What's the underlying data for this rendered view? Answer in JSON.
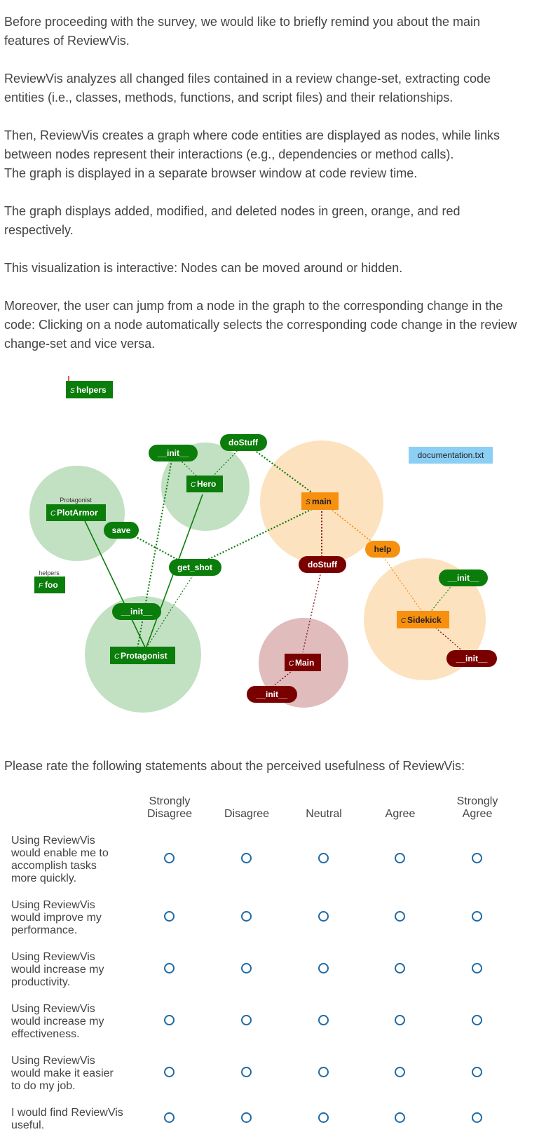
{
  "intro": {
    "p1": "Before proceeding with the survey, we would like to briefly remind you about the main features of ReviewVis.",
    "p2": "ReviewVis analyzes all changed files contained in a review change-set, extracting code entities (i.e., classes, methods, functions, and script files) and their relationships.",
    "p3a": "Then, ReviewVis creates a graph where code entities are displayed as nodes, while links between nodes represent their interactions (e.g., dependencies or method calls).",
    "p3b": "The graph is displayed in a separate browser window at code review time.",
    "p4": "The graph displays added, modified, and deleted nodes in green, orange, and red respectively.",
    "p5": "This visualization is interactive: Nodes can be moved around or hidden.",
    "p6": "Moreover, the user can jump from a node in the graph to the corresponding change in the code: Clicking on a node automatically selects the corresponding code change in the review change-set and vice versa."
  },
  "graph": {
    "colors": {
      "added": "#0a7d0a",
      "added_light": "#c2e0c2",
      "modified": "#f7900f",
      "modified_light": "#fde2c0",
      "deleted": "#7a0000",
      "deleted_light": "#e0bcbc",
      "file": "#8ccff5"
    },
    "nodes": {
      "helpers_script": {
        "prefix": "S",
        "label": "helpers"
      },
      "do_stuff_top": {
        "label": "doStuff"
      },
      "init_hero": {
        "label": "__init__"
      },
      "hero": {
        "prefix": "C",
        "label": "Hero"
      },
      "documentation": {
        "label": "documentation.txt"
      },
      "main_script": {
        "prefix": "S",
        "label": "main"
      },
      "protagonist_small": {
        "label": "Protagonist"
      },
      "plot_armor": {
        "prefix": "C",
        "label": "PlotArmor"
      },
      "save": {
        "label": "save"
      },
      "help": {
        "label": "help"
      },
      "do_stuff_deleted": {
        "label": "doStuff"
      },
      "get_shot": {
        "label": "get_shot"
      },
      "helpers_small": {
        "label": "helpers"
      },
      "foo": {
        "prefix": "F",
        "label": "foo"
      },
      "init_sidekick_added": {
        "label": "__init__"
      },
      "init_protagonist": {
        "label": "__init__"
      },
      "sidekick": {
        "prefix": "C",
        "label": "Sidekick"
      },
      "protagonist": {
        "prefix": "C",
        "label": "Protagonist"
      },
      "init_sidekick_deleted": {
        "label": "__init__"
      },
      "main_class": {
        "prefix": "C",
        "label": "Main"
      },
      "init_main": {
        "label": "__init__"
      }
    }
  },
  "survey": {
    "question": "Please rate the following statements about the perceived usefulness of ReviewVis:",
    "columns": [
      {
        "line1": "Strongly",
        "line2": "Disagree"
      },
      {
        "line1": "",
        "line2": "Disagree"
      },
      {
        "line1": "",
        "line2": "Neutral"
      },
      {
        "line1": "",
        "line2": "Agree"
      },
      {
        "line1": "Strongly",
        "line2": "Agree"
      }
    ],
    "rows": [
      {
        "lines": [
          "Using ReviewVis",
          "would enable me to",
          "accomplish tasks",
          "more quickly."
        ]
      },
      {
        "lines": [
          "Using ReviewVis",
          "would improve my",
          "performance."
        ]
      },
      {
        "lines": [
          "Using ReviewVis",
          "would increase my",
          "productivity."
        ]
      },
      {
        "lines": [
          "Using ReviewVis",
          "would increase my",
          "effectiveness."
        ]
      },
      {
        "lines": [
          "Using ReviewVis",
          "would make it easier",
          "to do my job."
        ]
      },
      {
        "lines": [
          "I would find ReviewVis",
          "useful."
        ]
      }
    ]
  }
}
